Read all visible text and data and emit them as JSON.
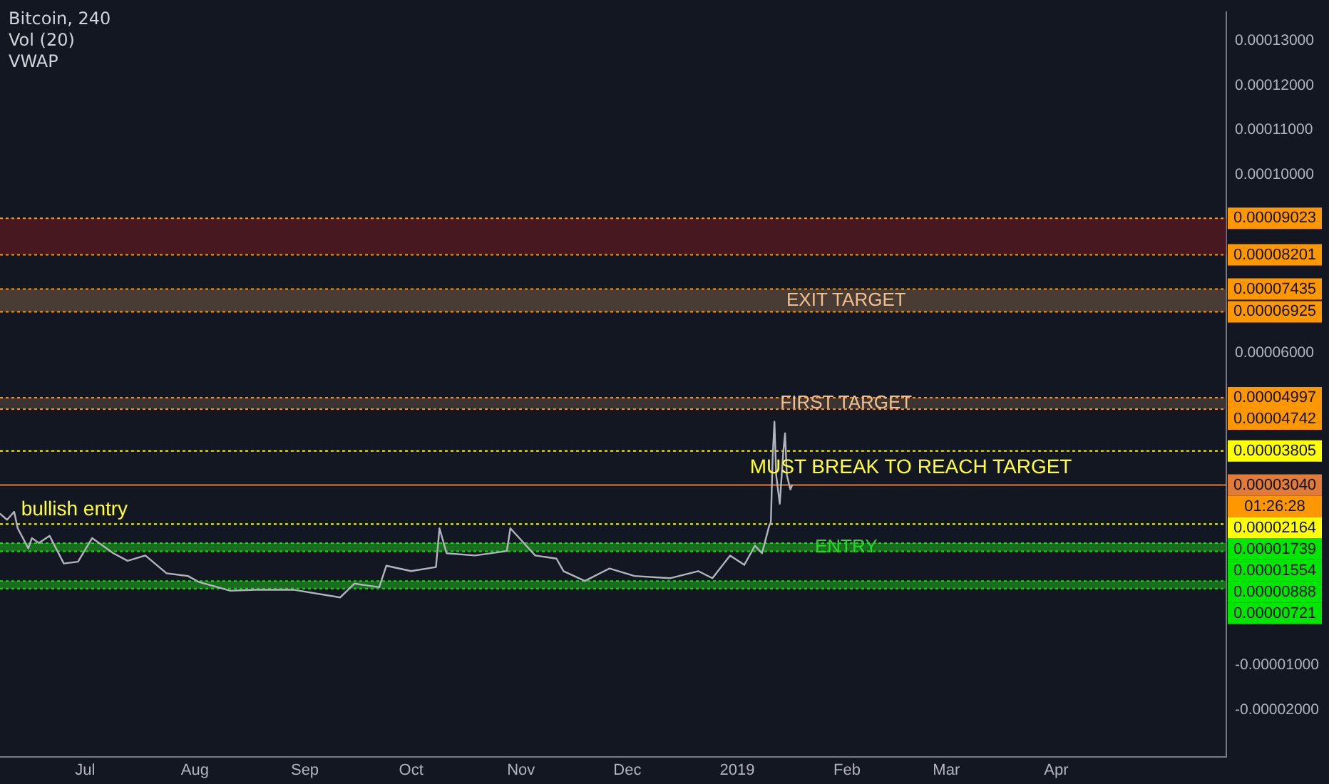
{
  "chart_data": {
    "type": "line",
    "title": "Bitcoin, 240",
    "annotations": [
      "Vol (20)",
      "VWAP",
      {
        "text": "bullish entry",
        "x": "2018-06-28",
        "y": 2.164e-05
      },
      {
        "text": "MUST BREAK TO REACH TARGET",
        "x": "2019-02-19",
        "y": 3.805e-05
      }
    ],
    "series": [
      {
        "color": "#b2b5be",
        "x": [
          "2018-06-07",
          "2018-06-09",
          "2018-06-11",
          "2018-06-12",
          "2018-06-15",
          "2018-06-16",
          "2018-06-18",
          "2018-06-21",
          "2018-06-25",
          "2018-06-29",
          "2018-07-03",
          "2018-07-09",
          "2018-07-13",
          "2018-07-18",
          "2018-07-24",
          "2018-07-30",
          "2018-08-02",
          "2018-08-11",
          "2018-08-18",
          "2018-08-29",
          "2018-09-11",
          "2018-09-15",
          "2018-09-22",
          "2018-09-24",
          "2018-10-01",
          "2018-10-08",
          "2018-10-09",
          "2018-10-11",
          "2018-10-19",
          "2018-10-28",
          "2018-10-29",
          "2018-11-05",
          "2018-11-11",
          "2018-11-13",
          "2018-11-19",
          "2018-11-26",
          "2018-12-03",
          "2018-12-13",
          "2018-12-21",
          "2018-12-25",
          "2018-12-30",
          "2019-01-03",
          "2019-01-06",
          "2019-01-08",
          "2019-01-10",
          "2019-01-10T12:00",
          "2019-01-11",
          "2019-01-11T12:00",
          "2019-01-12",
          "2019-01-13",
          "2019-01-14",
          "2019-01-14T12:00",
          "2019-01-15",
          "2019-01-16",
          "2019-01-16T12:00"
        ],
        "values": [
          2.4e-05,
          2.26e-05,
          2.44e-05,
          2.07e-05,
          1.62e-05,
          1.85e-05,
          1.74e-05,
          1.9e-05,
          1.28e-05,
          1.32e-05,
          1.85e-05,
          1.51e-05,
          1.34e-05,
          1.46e-05,
          1.06e-05,
          1e-05,
          8.7e-06,
          6.7e-06,
          6.9e-06,
          6.9e-06,
          5.2e-06,
          8.3e-06,
          7.5e-06,
          1.23e-05,
          1.11e-05,
          1.2e-05,
          2.07e-05,
          1.51e-05,
          1.46e-05,
          1.56e-05,
          2.07e-05,
          1.46e-05,
          1.39e-05,
          1.11e-05,
          8.9e-06,
          1.17e-05,
          1e-05,
          9.5e-06,
          1.11e-05,
          9.5e-06,
          1.46e-05,
          1.25e-05,
          1.68e-05,
          1.51e-05,
          2.12e-05,
          2.21e-05,
          3.67e-05,
          4.46e-05,
          3.26e-05,
          2.62e-05,
          3.79e-05,
          4.2e-05,
          3.26e-05,
          2.94e-05,
          3.04e-05
        ]
      }
    ],
    "xlim": [
      "2018-06-07",
      "2019-05-19"
    ],
    "xticks": [
      {
        "value": "2018-07-01",
        "label": "Jul"
      },
      {
        "value": "2018-08-01",
        "label": "Aug"
      },
      {
        "value": "2018-09-01",
        "label": "Sep"
      },
      {
        "value": "2018-10-01",
        "label": "Oct"
      },
      {
        "value": "2018-11-01",
        "label": "Nov"
      },
      {
        "value": "2018-12-01",
        "label": "Dec"
      },
      {
        "value": "2019-01-01",
        "label": "2019"
      },
      {
        "value": "2019-02-01",
        "label": "Feb"
      },
      {
        "value": "2019-03-01",
        "label": "Mar"
      },
      {
        "value": "2019-04-01",
        "label": "Apr"
      }
    ],
    "ylim": [
      -3.05e-05,
      0.0001365
    ],
    "yticks": [
      {
        "value": 0.00013,
        "label": "0.00013000"
      },
      {
        "value": 0.00012,
        "label": "0.00012000"
      },
      {
        "value": 0.00011,
        "label": "0.00011000"
      },
      {
        "value": 0.0001,
        "label": "0.00010000"
      },
      {
        "value": 6e-05,
        "label": "0.00006000"
      },
      {
        "value": -1e-05,
        "label": "-0.00001000"
      },
      {
        "value": -2e-05,
        "label": "-0.00002000"
      }
    ],
    "grid": false,
    "legend": false,
    "marker": "none",
    "line_style": "solid",
    "bands": [
      {
        "axis": "y",
        "from": 8.201e-05,
        "to": 9.023e-05,
        "color": "#5a1a20"
      },
      {
        "axis": "y",
        "from": 6.925e-05,
        "to": 7.435e-05,
        "label": "EXIT TARGET",
        "color": "#5c4a3c"
      },
      {
        "axis": "y",
        "from": 4.742e-05,
        "to": 4.997e-05,
        "label": "FIRST TARGET",
        "color": "#4a3f38"
      },
      {
        "axis": "y",
        "from": 1.554e-05,
        "to": 1.739e-05,
        "label": "ENTRY",
        "color": "#1e8a1e"
      },
      {
        "axis": "y",
        "from": 7.21e-06,
        "to": 8.88e-06,
        "color": "#1e8a1e"
      }
    ],
    "ref_lines": [
      {
        "axis": "y",
        "value": 9.023e-05,
        "label": "0.00009023",
        "color": "#ff9800",
        "line_style": "dotted"
      },
      {
        "axis": "y",
        "value": 8.201e-05,
        "label": "0.00008201",
        "color": "#ff9800",
        "line_style": "dotted"
      },
      {
        "axis": "y",
        "value": 7.435e-05,
        "label": "0.00007435",
        "color": "#ff9800",
        "line_style": "dotted"
      },
      {
        "axis": "y",
        "value": 6.925e-05,
        "label": "0.00006925",
        "color": "#ff9800",
        "line_style": "dotted"
      },
      {
        "axis": "y",
        "value": 4.997e-05,
        "label": "0.00004997",
        "color": "#ff9800",
        "line_style": "dotted"
      },
      {
        "axis": "y",
        "value": 4.742e-05,
        "label": "0.00004742",
        "color": "#ff9800",
        "line_style": "dotted"
      },
      {
        "axis": "y",
        "value": 3.805e-05,
        "label": "0.00003805",
        "color": "#ffff00",
        "line_style": "dotted"
      },
      {
        "axis": "y",
        "value": 3.04e-05,
        "label": "0.00003040\n01:26:28",
        "color": "#e07b39",
        "line_style": "solid"
      },
      {
        "axis": "y",
        "value": 2.164e-05,
        "label": "0.00002164",
        "color": "#ffff00",
        "line_style": "dotted"
      },
      {
        "axis": "y",
        "value": 1.739e-05,
        "label": "0.00001739",
        "color": "#00e600",
        "line_style": "dotted"
      },
      {
        "axis": "y",
        "value": 1.554e-05,
        "label": "0.00001554",
        "color": "#00e600",
        "line_style": "dotted"
      },
      {
        "axis": "y",
        "value": 8.88e-06,
        "label": "0.00000888",
        "color": "#00e600",
        "line_style": "dotted"
      },
      {
        "axis": "y",
        "value": 7.21e-06,
        "label": "0.00000721",
        "color": "#00e600",
        "line_style": "dotted"
      }
    ]
  }
}
